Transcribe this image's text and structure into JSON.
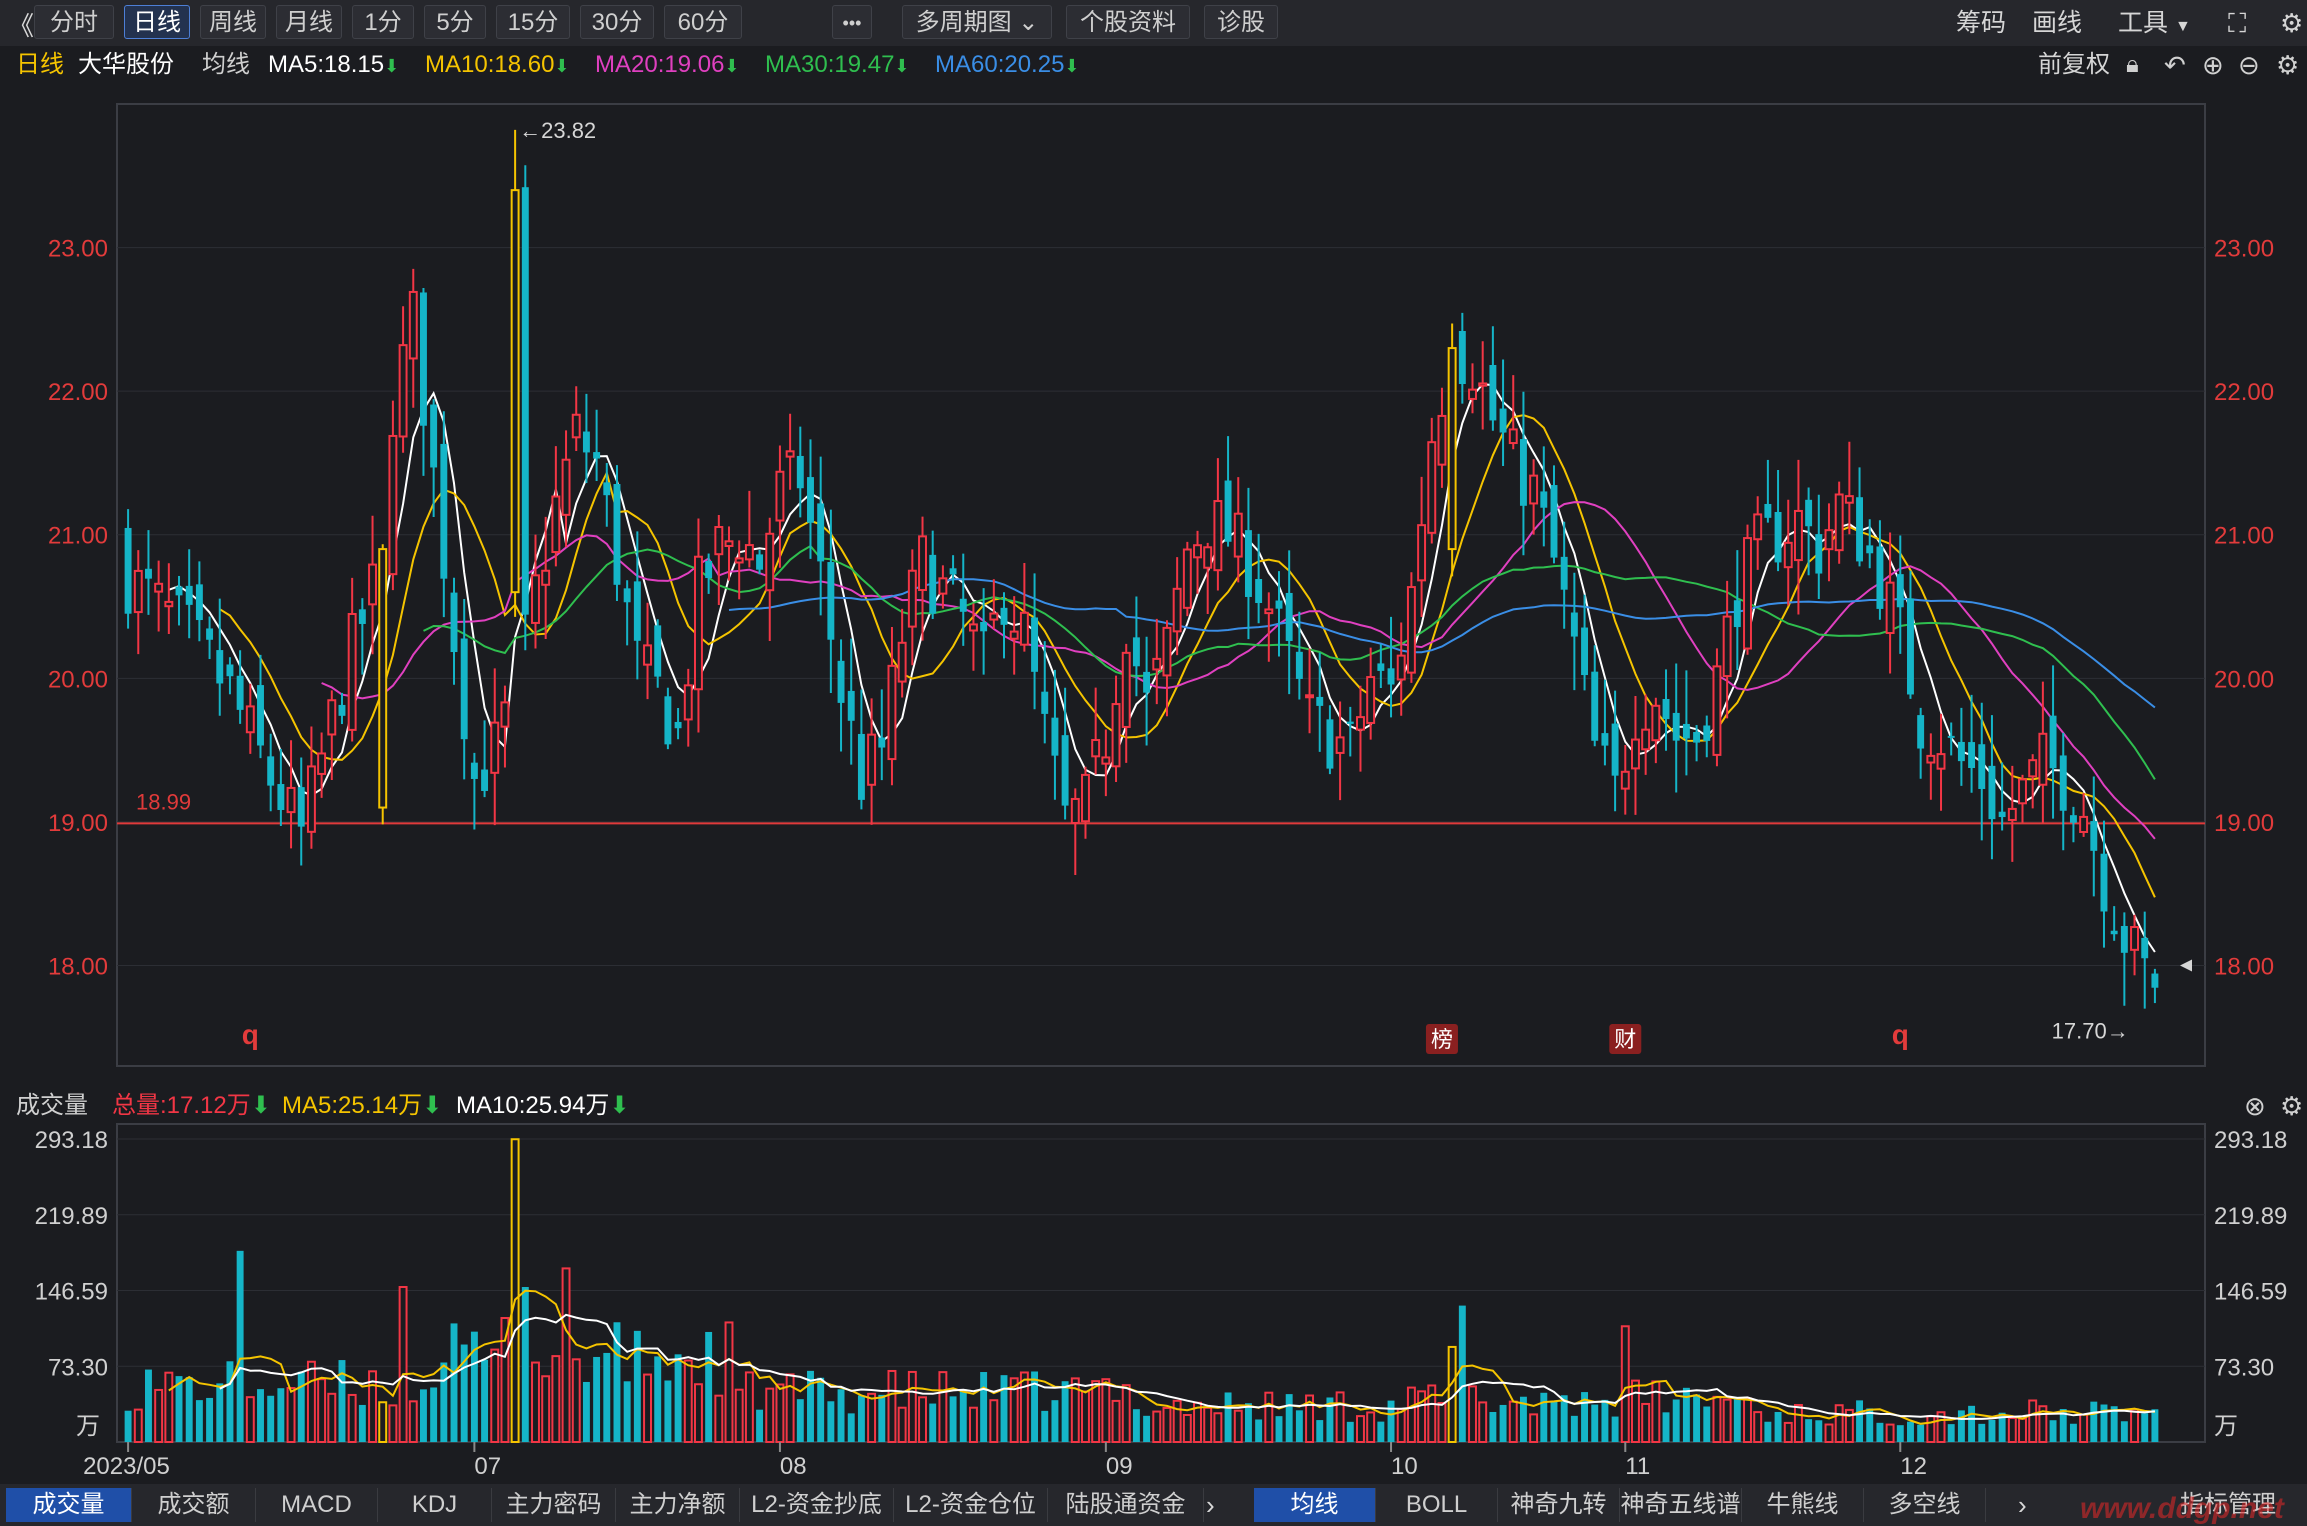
{
  "toolbar": {
    "collapse_glyph": "《",
    "periods": [
      "分时",
      "日线",
      "周线",
      "月线",
      "1分",
      "5分",
      "15分",
      "30分",
      "60分"
    ],
    "active_period": "日线",
    "more_glyph": "•••",
    "multi_period_label": "多周期图",
    "stock_info_label": "个股资料",
    "diagnose_label": "诊股",
    "right_tools": [
      "筹码",
      "画线",
      "工具"
    ]
  },
  "header": {
    "period": "日线",
    "stock_name": "大华股份",
    "avg_label": "均线",
    "ma": [
      {
        "label": "MA5:18.15",
        "color": "#ffffff"
      },
      {
        "label": "MA10:18.60",
        "color": "#f5c400"
      },
      {
        "label": "MA20:19.06",
        "color": "#e040c0"
      },
      {
        "label": "MA30:19.47",
        "color": "#2fbf4f"
      },
      {
        "label": "MA60:20.25",
        "color": "#3a8ee6"
      }
    ],
    "adjust_label": "前复权"
  },
  "volume_header": {
    "title": "成交量",
    "total_label": "总量:17.12万",
    "ma5_label": "MA5:25.14万",
    "ma10_label": "MA10:25.94万"
  },
  "chart_data": {
    "type": "candlestick",
    "price_ticks": [
      "23.00",
      "22.00",
      "21.00",
      "20.00",
      "19.00",
      "18.00"
    ],
    "ylim": [
      17.3,
      24.0
    ],
    "reference_line": {
      "value": 18.99,
      "label": "18.99"
    },
    "high_marker": {
      "label": "←23.82",
      "value": 23.82
    },
    "low_marker": {
      "label": "17.70→",
      "value": 17.7
    },
    "volume_ticks": [
      "293.18",
      "219.89",
      "146.59",
      "73.30"
    ],
    "volume_unit": "万",
    "volume_ylim": [
      0,
      300
    ],
    "x_labels": [
      "2023/05",
      "07",
      "08",
      "09",
      "10",
      "11",
      "12"
    ],
    "event_marks": [
      {
        "label": "q",
        "index": 12,
        "style": "letter"
      },
      {
        "label": "榜",
        "index": 129,
        "style": "badge"
      },
      {
        "label": "财",
        "index": 147,
        "style": "badge"
      },
      {
        "label": "q",
        "index": 174,
        "style": "letter"
      }
    ],
    "colors": {
      "up": "#f23645",
      "down": "#15b5c8",
      "limit": "#f5c400",
      "reference": "#e03a3a"
    }
  },
  "bottom_tabs_left": [
    "成交量",
    "成交额",
    "MACD",
    "KDJ",
    "主力密码",
    "主力净额",
    "L2-资金抄底",
    "L2-资金仓位",
    "陆股通资金"
  ],
  "bottom_tabs_right": [
    "均线",
    "BOLL",
    "神奇九转",
    "神奇五线谱",
    "牛熊线",
    "多空线"
  ],
  "indicator_manage": "指标管理",
  "watermark": "www.ddgp.net"
}
